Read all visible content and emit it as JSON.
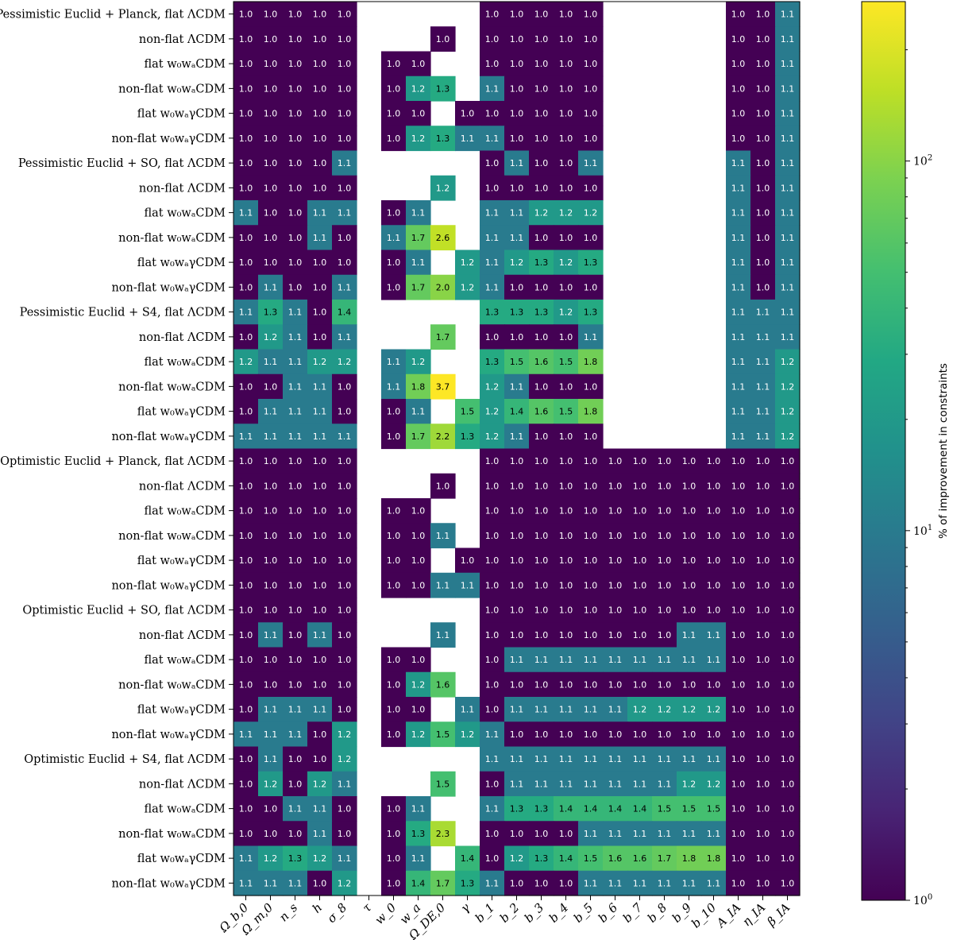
{
  "chart_data": {
    "type": "heatmap",
    "title": "",
    "columns": [
      "Ω_b,0",
      "Ω_m,0",
      "n_s",
      "h",
      "σ_8",
      "τ",
      "w_0",
      "w_a",
      "Ω_DE,0",
      "γ",
      "b_1",
      "b_2",
      "b_3",
      "b_4",
      "b_5",
      "b_6",
      "b_7",
      "b_8",
      "b_9",
      "b_10",
      "A_IA",
      "η_IA",
      "β_IA"
    ],
    "rows": [
      {
        "label": "Pessimistic Euclid + Planck, flat ΛCDM",
        "values": [
          1.0,
          1.0,
          1.0,
          1.0,
          1.0,
          null,
          null,
          null,
          null,
          null,
          1.0,
          1.0,
          1.0,
          1.0,
          1.0,
          null,
          null,
          null,
          null,
          null,
          1.0,
          1.0,
          1.1
        ]
      },
      {
        "label": "non-flat ΛCDM",
        "values": [
          1.0,
          1.0,
          1.0,
          1.0,
          1.0,
          null,
          null,
          null,
          1.0,
          null,
          1.0,
          1.0,
          1.0,
          1.0,
          1.0,
          null,
          null,
          null,
          null,
          null,
          1.0,
          1.0,
          1.1
        ]
      },
      {
        "label": "flat w₀wₐCDM",
        "values": [
          1.0,
          1.0,
          1.0,
          1.0,
          1.0,
          null,
          1.0,
          1.0,
          null,
          null,
          1.0,
          1.0,
          1.0,
          1.0,
          1.0,
          null,
          null,
          null,
          null,
          null,
          1.0,
          1.0,
          1.1
        ]
      },
      {
        "label": "non-flat w₀wₐCDM",
        "values": [
          1.0,
          1.0,
          1.0,
          1.0,
          1.0,
          null,
          1.0,
          1.2,
          1.3,
          null,
          1.1,
          1.0,
          1.0,
          1.0,
          1.0,
          null,
          null,
          null,
          null,
          null,
          1.0,
          1.0,
          1.1
        ]
      },
      {
        "label": "flat w₀wₐγCDM",
        "values": [
          1.0,
          1.0,
          1.0,
          1.0,
          1.0,
          null,
          1.0,
          1.0,
          null,
          1.0,
          1.0,
          1.0,
          1.0,
          1.0,
          1.0,
          null,
          null,
          null,
          null,
          null,
          1.0,
          1.0,
          1.1
        ]
      },
      {
        "label": "non-flat w₀wₐγCDM",
        "values": [
          1.0,
          1.0,
          1.0,
          1.0,
          1.0,
          null,
          1.0,
          1.2,
          1.3,
          1.1,
          1.1,
          1.0,
          1.0,
          1.0,
          1.0,
          null,
          null,
          null,
          null,
          null,
          1.0,
          1.0,
          1.1
        ]
      },
      {
        "label": "Pessimistic Euclid + SO, flat ΛCDM",
        "values": [
          1.0,
          1.0,
          1.0,
          1.0,
          1.1,
          null,
          null,
          null,
          null,
          null,
          1.0,
          1.1,
          1.0,
          1.0,
          1.1,
          null,
          null,
          null,
          null,
          null,
          1.1,
          1.0,
          1.1
        ]
      },
      {
        "label": "non-flat ΛCDM",
        "values": [
          1.0,
          1.0,
          1.0,
          1.0,
          1.0,
          null,
          null,
          null,
          1.2,
          null,
          1.0,
          1.0,
          1.0,
          1.0,
          1.0,
          null,
          null,
          null,
          null,
          null,
          1.1,
          1.0,
          1.1
        ]
      },
      {
        "label": "flat w₀wₐCDM",
        "values": [
          1.1,
          1.0,
          1.0,
          1.1,
          1.1,
          null,
          1.0,
          1.1,
          null,
          null,
          1.1,
          1.1,
          1.2,
          1.2,
          1.2,
          null,
          null,
          null,
          null,
          null,
          1.1,
          1.0,
          1.1
        ]
      },
      {
        "label": "non-flat w₀wₐCDM",
        "values": [
          1.0,
          1.0,
          1.0,
          1.1,
          1.0,
          null,
          1.1,
          1.7,
          2.6,
          null,
          1.1,
          1.1,
          1.0,
          1.0,
          1.0,
          null,
          null,
          null,
          null,
          null,
          1.1,
          1.0,
          1.1
        ]
      },
      {
        "label": "flat w₀wₐγCDM",
        "values": [
          1.0,
          1.0,
          1.0,
          1.0,
          1.0,
          null,
          1.0,
          1.1,
          null,
          1.2,
          1.1,
          1.2,
          1.3,
          1.2,
          1.3,
          null,
          null,
          null,
          null,
          null,
          1.1,
          1.0,
          1.1
        ]
      },
      {
        "label": "non-flat w₀wₐγCDM",
        "values": [
          1.0,
          1.1,
          1.0,
          1.0,
          1.1,
          null,
          1.0,
          1.7,
          2.0,
          1.2,
          1.1,
          1.0,
          1.0,
          1.0,
          1.0,
          null,
          null,
          null,
          null,
          null,
          1.1,
          1.0,
          1.1
        ]
      },
      {
        "label": "Pessimistic Euclid + S4, flat ΛCDM",
        "values": [
          1.1,
          1.3,
          1.1,
          1.0,
          1.4,
          null,
          null,
          null,
          null,
          null,
          1.3,
          1.3,
          1.3,
          1.2,
          1.3,
          null,
          null,
          null,
          null,
          null,
          1.1,
          1.1,
          1.1
        ]
      },
      {
        "label": "non-flat ΛCDM",
        "values": [
          1.0,
          1.2,
          1.1,
          1.0,
          1.1,
          null,
          null,
          null,
          1.7,
          null,
          1.0,
          1.0,
          1.0,
          1.0,
          1.1,
          null,
          null,
          null,
          null,
          null,
          1.1,
          1.1,
          1.1
        ]
      },
      {
        "label": "flat w₀wₐCDM",
        "values": [
          1.2,
          1.1,
          1.1,
          1.2,
          1.2,
          null,
          1.1,
          1.2,
          null,
          null,
          1.3,
          1.5,
          1.6,
          1.5,
          1.8,
          null,
          null,
          null,
          null,
          null,
          1.1,
          1.1,
          1.2
        ]
      },
      {
        "label": "non-flat w₀wₐCDM",
        "values": [
          1.0,
          1.0,
          1.1,
          1.1,
          1.0,
          null,
          1.1,
          1.8,
          3.7,
          null,
          1.2,
          1.1,
          1.0,
          1.0,
          1.0,
          null,
          null,
          null,
          null,
          null,
          1.1,
          1.1,
          1.2
        ]
      },
      {
        "label": "flat w₀wₐγCDM",
        "values": [
          1.0,
          1.1,
          1.1,
          1.1,
          1.0,
          null,
          1.0,
          1.1,
          null,
          1.5,
          1.2,
          1.4,
          1.6,
          1.5,
          1.8,
          null,
          null,
          null,
          null,
          null,
          1.1,
          1.1,
          1.2
        ]
      },
      {
        "label": "non-flat w₀wₐγCDM",
        "values": [
          1.1,
          1.1,
          1.1,
          1.1,
          1.1,
          null,
          1.0,
          1.7,
          2.2,
          1.3,
          1.2,
          1.1,
          1.0,
          1.0,
          1.0,
          null,
          null,
          null,
          null,
          null,
          1.1,
          1.1,
          1.2
        ]
      },
      {
        "label": "Optimistic Euclid + Planck, flat ΛCDM",
        "values": [
          1.0,
          1.0,
          1.0,
          1.0,
          1.0,
          null,
          null,
          null,
          null,
          null,
          1.0,
          1.0,
          1.0,
          1.0,
          1.0,
          1.0,
          1.0,
          1.0,
          1.0,
          1.0,
          1.0,
          1.0,
          1.0
        ]
      },
      {
        "label": "non-flat ΛCDM",
        "values": [
          1.0,
          1.0,
          1.0,
          1.0,
          1.0,
          null,
          null,
          null,
          1.0,
          null,
          1.0,
          1.0,
          1.0,
          1.0,
          1.0,
          1.0,
          1.0,
          1.0,
          1.0,
          1.0,
          1.0,
          1.0,
          1.0
        ]
      },
      {
        "label": "flat w₀wₐCDM",
        "values": [
          1.0,
          1.0,
          1.0,
          1.0,
          1.0,
          null,
          1.0,
          1.0,
          null,
          null,
          1.0,
          1.0,
          1.0,
          1.0,
          1.0,
          1.0,
          1.0,
          1.0,
          1.0,
          1.0,
          1.0,
          1.0,
          1.0
        ]
      },
      {
        "label": "non-flat w₀wₐCDM",
        "values": [
          1.0,
          1.0,
          1.0,
          1.0,
          1.0,
          null,
          1.0,
          1.0,
          1.1,
          null,
          1.0,
          1.0,
          1.0,
          1.0,
          1.0,
          1.0,
          1.0,
          1.0,
          1.0,
          1.0,
          1.0,
          1.0,
          1.0
        ]
      },
      {
        "label": "flat w₀wₐγCDM",
        "values": [
          1.0,
          1.0,
          1.0,
          1.0,
          1.0,
          null,
          1.0,
          1.0,
          null,
          1.0,
          1.0,
          1.0,
          1.0,
          1.0,
          1.0,
          1.0,
          1.0,
          1.0,
          1.0,
          1.0,
          1.0,
          1.0,
          1.0
        ]
      },
      {
        "label": "non-flat w₀wₐγCDM",
        "values": [
          1.0,
          1.0,
          1.0,
          1.0,
          1.0,
          null,
          1.0,
          1.0,
          1.1,
          1.1,
          1.0,
          1.0,
          1.0,
          1.0,
          1.0,
          1.0,
          1.0,
          1.0,
          1.0,
          1.0,
          1.0,
          1.0,
          1.0
        ]
      },
      {
        "label": "Optimistic Euclid + SO, flat ΛCDM",
        "values": [
          1.0,
          1.0,
          1.0,
          1.0,
          1.0,
          null,
          null,
          null,
          null,
          null,
          1.0,
          1.0,
          1.0,
          1.0,
          1.0,
          1.0,
          1.0,
          1.0,
          1.0,
          1.0,
          1.0,
          1.0,
          1.0
        ]
      },
      {
        "label": "non-flat ΛCDM",
        "values": [
          1.0,
          1.1,
          1.0,
          1.1,
          1.0,
          null,
          null,
          null,
          1.1,
          null,
          1.0,
          1.0,
          1.0,
          1.0,
          1.0,
          1.0,
          1.0,
          1.0,
          1.1,
          1.1,
          1.0,
          1.0,
          1.0
        ]
      },
      {
        "label": "flat w₀wₐCDM",
        "values": [
          1.0,
          1.0,
          1.0,
          1.0,
          1.0,
          null,
          1.0,
          1.0,
          null,
          null,
          1.0,
          1.1,
          1.1,
          1.1,
          1.1,
          1.1,
          1.1,
          1.1,
          1.1,
          1.1,
          1.0,
          1.0,
          1.0
        ]
      },
      {
        "label": "non-flat w₀wₐCDM",
        "values": [
          1.0,
          1.0,
          1.0,
          1.0,
          1.0,
          null,
          1.0,
          1.2,
          1.6,
          null,
          1.0,
          1.0,
          1.0,
          1.0,
          1.0,
          1.0,
          1.0,
          1.0,
          1.0,
          1.0,
          1.0,
          1.0,
          1.0
        ]
      },
      {
        "label": "flat w₀wₐγCDM",
        "values": [
          1.0,
          1.1,
          1.1,
          1.1,
          1.0,
          null,
          1.0,
          1.0,
          null,
          1.1,
          1.0,
          1.1,
          1.1,
          1.1,
          1.1,
          1.1,
          1.2,
          1.2,
          1.2,
          1.2,
          1.0,
          1.0,
          1.0
        ]
      },
      {
        "label": "non-flat w₀wₐγCDM",
        "values": [
          1.1,
          1.1,
          1.1,
          1.0,
          1.2,
          null,
          1.0,
          1.2,
          1.5,
          1.2,
          1.1,
          1.0,
          1.0,
          1.0,
          1.0,
          1.0,
          1.0,
          1.0,
          1.0,
          1.0,
          1.0,
          1.0,
          1.0
        ]
      },
      {
        "label": "Optimistic Euclid + S4, flat ΛCDM",
        "values": [
          1.0,
          1.1,
          1.0,
          1.0,
          1.2,
          null,
          null,
          null,
          null,
          null,
          1.1,
          1.1,
          1.1,
          1.1,
          1.1,
          1.1,
          1.1,
          1.1,
          1.1,
          1.1,
          1.0,
          1.0,
          1.0
        ]
      },
      {
        "label": "non-flat ΛCDM",
        "values": [
          1.0,
          1.2,
          1.0,
          1.2,
          1.1,
          null,
          null,
          null,
          1.5,
          null,
          1.0,
          1.1,
          1.1,
          1.1,
          1.1,
          1.1,
          1.1,
          1.1,
          1.2,
          1.2,
          1.0,
          1.0,
          1.0
        ]
      },
      {
        "label": "flat w₀wₐCDM",
        "values": [
          1.0,
          1.0,
          1.1,
          1.1,
          1.0,
          null,
          1.0,
          1.1,
          null,
          null,
          1.1,
          1.3,
          1.3,
          1.4,
          1.4,
          1.4,
          1.4,
          1.5,
          1.5,
          1.5,
          1.0,
          1.0,
          1.0
        ]
      },
      {
        "label": "non-flat w₀wₐCDM",
        "values": [
          1.0,
          1.0,
          1.0,
          1.1,
          1.0,
          null,
          1.0,
          1.3,
          2.3,
          null,
          1.0,
          1.0,
          1.0,
          1.0,
          1.1,
          1.1,
          1.1,
          1.1,
          1.1,
          1.1,
          1.0,
          1.0,
          1.0
        ]
      },
      {
        "label": "flat w₀wₐγCDM",
        "values": [
          1.1,
          1.2,
          1.3,
          1.2,
          1.1,
          null,
          1.0,
          1.1,
          null,
          1.4,
          1.0,
          1.2,
          1.3,
          1.4,
          1.5,
          1.6,
          1.6,
          1.7,
          1.8,
          1.8,
          1.0,
          1.0,
          1.0
        ]
      },
      {
        "label": "non-flat w₀wₐγCDM",
        "values": [
          1.1,
          1.1,
          1.1,
          1.0,
          1.2,
          null,
          1.0,
          1.4,
          1.7,
          1.3,
          1.1,
          1.0,
          1.0,
          1.0,
          1.1,
          1.1,
          1.1,
          1.1,
          1.1,
          1.1,
          1.0,
          1.0,
          1.0
        ]
      }
    ],
    "colorbar": {
      "label": "% of improvement in constraints",
      "scale": "log",
      "range": [
        1,
        270
      ],
      "ticks": [
        "10^0",
        "10^1",
        "10^2"
      ],
      "colormap": "viridis",
      "color_low": "#440154",
      "color_high": "#fde725"
    }
  }
}
